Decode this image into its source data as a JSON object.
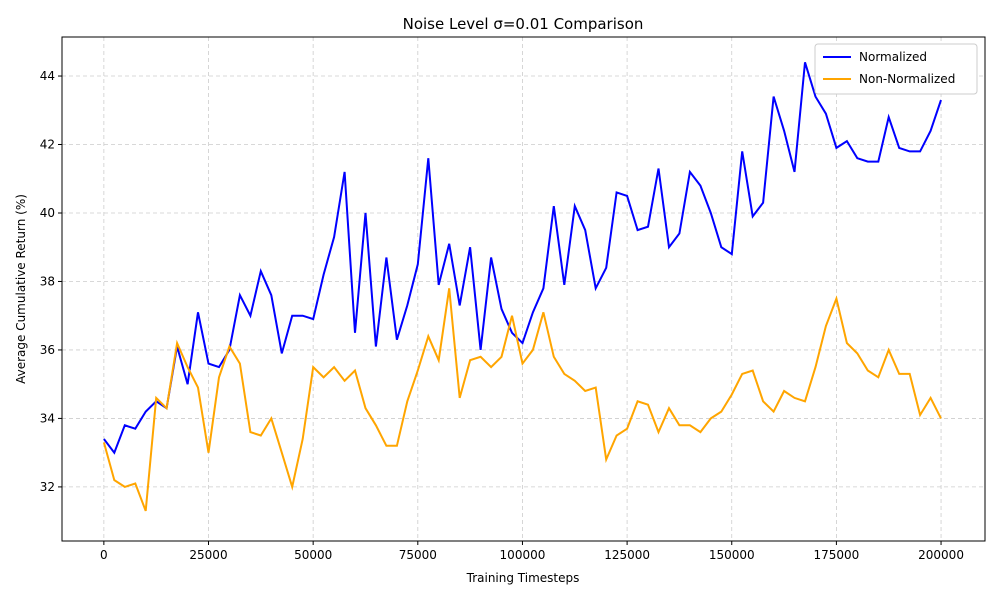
{
  "chart_data": {
    "type": "line",
    "title": "Noise Level σ=0.01 Comparison",
    "x_label": "Training Timesteps",
    "y_label": "Average Cumulative Return (%)",
    "x": [
      0,
      2500,
      5000,
      7500,
      10000,
      12500,
      15000,
      17500,
      20000,
      22500,
      25000,
      27500,
      30000,
      32500,
      35000,
      37500,
      40000,
      42500,
      45000,
      47500,
      50000,
      52500,
      55000,
      57500,
      60000,
      62500,
      65000,
      67500,
      70000,
      72500,
      75000,
      77500,
      80000,
      82500,
      85000,
      87500,
      90000,
      92500,
      95000,
      97500,
      100000,
      102500,
      105000,
      107500,
      110000,
      112500,
      115000,
      117500,
      120000,
      122500,
      125000,
      127500,
      130000,
      132500,
      135000,
      137500,
      140000,
      142500,
      145000,
      147500,
      150000,
      152500,
      155000,
      157500,
      160000,
      162500,
      165000,
      167500,
      170000,
      172500,
      175000,
      177500,
      180000,
      182500,
      185000,
      187500,
      190000,
      192500,
      195000,
      197500,
      200000
    ],
    "series": [
      {
        "name": "Normalized",
        "color": "#0000ff",
        "values": [
          33.4,
          33.0,
          33.8,
          33.7,
          34.2,
          34.5,
          34.3,
          36.1,
          35.0,
          37.1,
          35.6,
          35.5,
          36.0,
          37.6,
          37.0,
          38.3,
          37.6,
          35.9,
          37.0,
          37.0,
          36.9,
          38.2,
          39.3,
          41.2,
          36.5,
          40.0,
          36.1,
          38.7,
          36.3,
          37.3,
          38.5,
          41.6,
          37.9,
          39.1,
          37.3,
          39.0,
          36.0,
          38.7,
          37.2,
          36.5,
          36.2,
          37.1,
          37.8,
          40.2,
          37.9,
          40.2,
          39.5,
          37.8,
          38.4,
          40.6,
          40.5,
          39.5,
          39.6,
          41.3,
          39.0,
          39.4,
          41.2,
          40.8,
          40.0,
          39.0,
          38.8,
          41.8,
          39.9,
          40.3,
          43.4,
          42.4,
          41.2,
          44.4,
          43.4,
          42.9,
          41.9,
          42.1,
          41.6,
          41.5,
          41.5,
          42.8,
          41.9,
          41.8,
          41.8,
          42.4,
          43.3
        ]
      },
      {
        "name": "Non-Normalized",
        "color": "#ffa500",
        "values": [
          33.3,
          32.2,
          32.0,
          32.1,
          31.3,
          34.6,
          34.3,
          36.2,
          35.5,
          34.9,
          33.0,
          35.2,
          36.1,
          35.6,
          33.6,
          33.5,
          34.0,
          33.0,
          32.0,
          33.4,
          35.5,
          35.2,
          35.5,
          35.1,
          35.4,
          34.3,
          33.8,
          33.2,
          33.2,
          34.5,
          35.4,
          36.4,
          35.7,
          37.8,
          34.6,
          35.7,
          35.8,
          35.5,
          35.8,
          37.0,
          35.6,
          36.0,
          37.1,
          35.8,
          35.3,
          35.1,
          34.8,
          34.9,
          32.8,
          33.5,
          33.7,
          34.5,
          34.4,
          33.6,
          34.3,
          33.8,
          33.8,
          33.6,
          34.0,
          34.2,
          34.7,
          35.3,
          35.4,
          34.5,
          34.2,
          34.8,
          34.6,
          34.5,
          35.5,
          36.7,
          37.5,
          36.2,
          35.9,
          35.4,
          35.2,
          36.0,
          35.3,
          35.3,
          34.1,
          34.6,
          34.0
        ]
      }
    ],
    "xlim": [
      -10000,
      210500
    ],
    "ylim": [
      30.42,
      45.14
    ],
    "xticks": [
      0,
      25000,
      50000,
      75000,
      100000,
      125000,
      150000,
      175000,
      200000
    ],
    "yticks": [
      32,
      34,
      36,
      38,
      40,
      42,
      44
    ],
    "grid": true,
    "legend": "upper right"
  }
}
